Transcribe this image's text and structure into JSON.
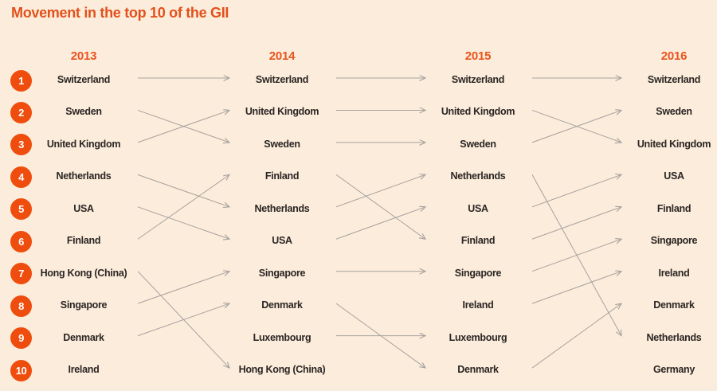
{
  "title": "Movement in the top 10 of the GII",
  "colors": {
    "background": "#fcecdb",
    "title_orange": "#e2511b",
    "year_orange": "#e8541d",
    "badge_orange": "#ee4d0d",
    "badge_number": "#ffffff",
    "country_text": "#2a2624",
    "arrow_gray": "#a6a29e"
  },
  "rank_numbers": [
    "1",
    "2",
    "3",
    "4",
    "5",
    "6",
    "7",
    "8",
    "9",
    "10"
  ],
  "chart_data": {
    "type": "bump",
    "title": "Movement in the top 10 of the GII",
    "columns": [
      {
        "year": "2013",
        "ranking": [
          "Switzerland",
          "Sweden",
          "United Kingdom",
          "Netherlands",
          "USA",
          "Finland",
          "Hong Kong (China)",
          "Singapore",
          "Denmark",
          "Ireland"
        ]
      },
      {
        "year": "2014",
        "ranking": [
          "Switzerland",
          "United Kingdom",
          "Sweden",
          "Finland",
          "Netherlands",
          "USA",
          "Singapore",
          "Denmark",
          "Luxembourg",
          "Hong Kong (China)"
        ]
      },
      {
        "year": "2015",
        "ranking": [
          "Switzerland",
          "United Kingdom",
          "Sweden",
          "Netherlands",
          "USA",
          "Finland",
          "Singapore",
          "Ireland",
          "Luxembourg",
          "Denmark"
        ]
      },
      {
        "year": "2016",
        "ranking": [
          "Switzerland",
          "Sweden",
          "United Kingdom",
          "USA",
          "Finland",
          "Singapore",
          "Ireland",
          "Denmark",
          "Netherlands",
          "Germany"
        ]
      }
    ],
    "transitions": [
      {
        "from_year": "2013",
        "to_year": "2014",
        "moves": [
          [
            1,
            1
          ],
          [
            2,
            3
          ],
          [
            3,
            2
          ],
          [
            4,
            5
          ],
          [
            5,
            6
          ],
          [
            6,
            4
          ],
          [
            7,
            10
          ],
          [
            8,
            7
          ],
          [
            9,
            8
          ]
        ],
        "dropped_out": [
          "Ireland"
        ],
        "new_entries": [
          "Luxembourg"
        ]
      },
      {
        "from_year": "2014",
        "to_year": "2015",
        "moves": [
          [
            1,
            1
          ],
          [
            2,
            2
          ],
          [
            3,
            3
          ],
          [
            4,
            6
          ],
          [
            5,
            4
          ],
          [
            6,
            5
          ],
          [
            7,
            7
          ],
          [
            8,
            10
          ],
          [
            9,
            9
          ]
        ],
        "dropped_out": [
          "Hong Kong (China)"
        ],
        "new_entries": [
          "Ireland"
        ]
      },
      {
        "from_year": "2015",
        "to_year": "2016",
        "moves": [
          [
            1,
            1
          ],
          [
            2,
            3
          ],
          [
            3,
            2
          ],
          [
            4,
            9
          ],
          [
            5,
            4
          ],
          [
            6,
            5
          ],
          [
            7,
            6
          ],
          [
            8,
            7
          ],
          [
            10,
            8
          ]
        ],
        "dropped_out": [
          "Luxembourg"
        ],
        "new_entries": [
          "Germany"
        ]
      }
    ]
  }
}
